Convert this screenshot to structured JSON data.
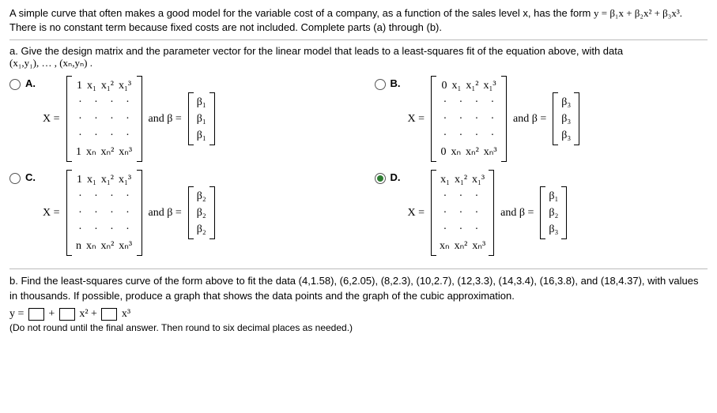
{
  "intro": {
    "line1_pre": "A simple curve that often makes a good model for the variable cost of a company, as a function of the sales level x, has the form ",
    "eq": "y = β₁x + β₂x² + β₃x³.",
    "line2": "There is no constant term because fixed costs are not included. Complete parts (a) through (b)."
  },
  "part_a": {
    "prompt_pre": "a. Give the design matrix and the parameter vector for the linear model that leads to a least-squares fit of the equation above, with data",
    "prompt_data": "(x₁,y₁), … , (xₙ,yₙ) ."
  },
  "options": {
    "A": {
      "letter": "A.",
      "row1": [
        "1",
        "x₁",
        "x₁²",
        "x₁³"
      ],
      "rowN": [
        "1",
        "xₙ",
        "xₙ²",
        "xₙ³"
      ],
      "beta": [
        "β₁",
        "β₁",
        "β₁"
      ],
      "selected": false
    },
    "B": {
      "letter": "B.",
      "row1": [
        "0",
        "x₁",
        "x₁²",
        "x₁³"
      ],
      "rowN": [
        "0",
        "xₙ",
        "xₙ²",
        "xₙ³"
      ],
      "beta": [
        "β₃",
        "β₃",
        "β₃"
      ],
      "selected": false
    },
    "C": {
      "letter": "C.",
      "row1": [
        "1",
        "x₁",
        "x₁²",
        "x₁³"
      ],
      "rowN": [
        "n",
        "xₙ",
        "xₙ²",
        "xₙ³"
      ],
      "beta": [
        "β₂",
        "β₂",
        "β₂"
      ],
      "selected": false
    },
    "D": {
      "letter": "D.",
      "row1": [
        "x₁",
        "x₁²",
        "x₁³"
      ],
      "rowN": [
        "xₙ",
        "xₙ²",
        "xₙ³"
      ],
      "beta": [
        "β₁",
        "β₂",
        "β₃"
      ],
      "selected": true
    }
  },
  "labels": {
    "Xeq": "X =",
    "andBeta": "and β ="
  },
  "part_b": {
    "text": "b. Find the least-squares curve of the form above to fit the data (4,1.58), (6,2.05), (8,2.3), (10,2.7), (12,3.3), (14,3.4), (16,3.8), and (18,4.37), with values in thousands. If possible, produce a graph that shows the data points and the graph of the cubic approximation.",
    "answer_eq_prefix": "y =",
    "answer_eq_mid1": "+",
    "answer_eq_x2": "x² +",
    "answer_eq_x3": "x³",
    "note": "(Do not round until the final answer. Then round to six decimal places as needed.)"
  }
}
